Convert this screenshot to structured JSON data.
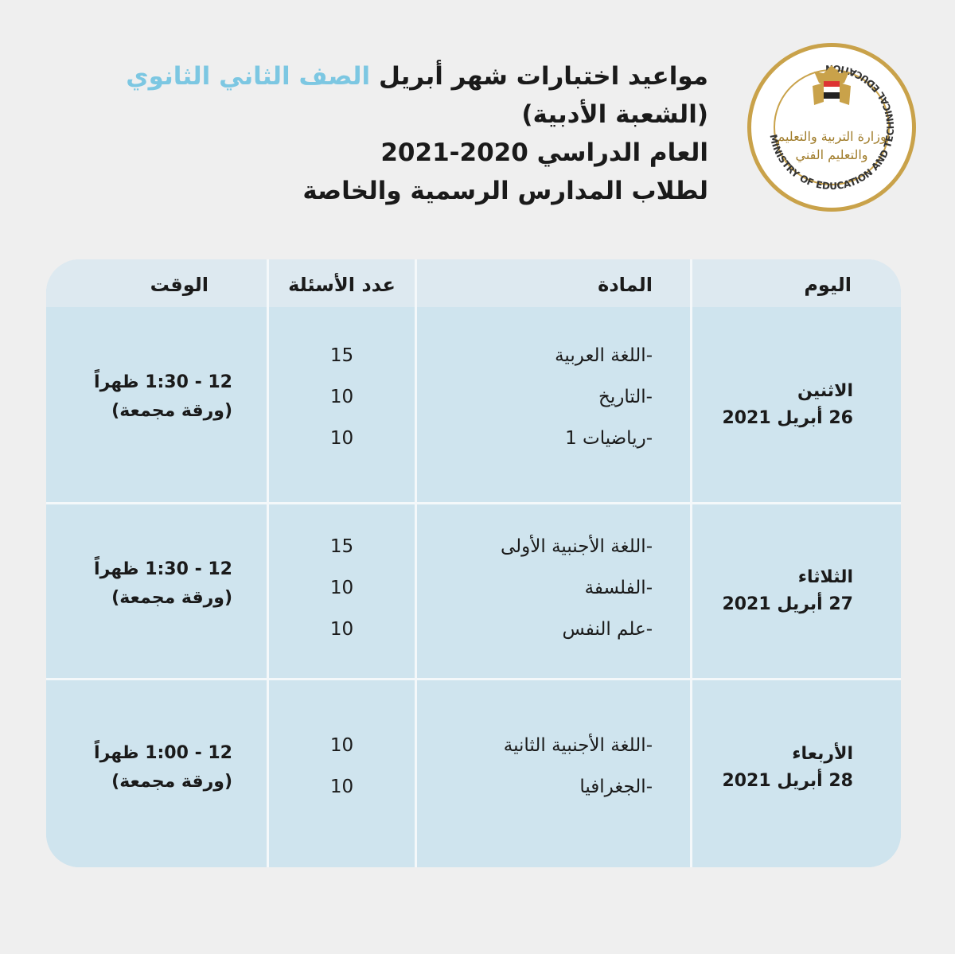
{
  "header": {
    "line1_main": "مواعيد اختبارات شهر أبريل",
    "line1_highlight": "الصف الثاني الثانوي",
    "line2": "(الشعبة الأدبية)",
    "line3": "العام الدراسي 2020-2021",
    "line4": "لطلاب المدارس الرسمية والخاصة",
    "highlight_color": "#7cc7e2"
  },
  "logo": {
    "text_en": "MINISTRY OF EDUCATION AND TECHNICAL EDUCATION",
    "text_ar": "وزارة التربية والتعليم والتعليم الفني",
    "ring_color": "#c9a24a"
  },
  "table": {
    "columns": [
      "اليوم",
      "المادة",
      "عدد الأسئلة",
      "الوقت"
    ],
    "rows": [
      {
        "day": "الاثنين",
        "date": "26 أبريل 2021",
        "subjects": [
          "-اللغة العربية",
          "-التاريخ",
          "-رياضيات 1"
        ],
        "counts": [
          "15",
          "10",
          "10"
        ],
        "time": "12 - 1:30 ظهراً",
        "note": "(ورقة مجمعة)"
      },
      {
        "day": "الثلاثاء",
        "date": "27 أبريل 2021",
        "subjects": [
          "-اللغة الأجنبية الأولى",
          "-الفلسفة",
          "-علم النفس"
        ],
        "counts": [
          "15",
          "10",
          "10"
        ],
        "time": "12 - 1:30 ظهراً",
        "note": "(ورقة مجمعة)"
      },
      {
        "day": "الأربعاء",
        "date": "28 أبريل 2021",
        "subjects": [
          "-اللغة الأجنبية الثانية",
          "-الجغرافيا"
        ],
        "counts": [
          "10",
          "10"
        ],
        "time": "12 - 1:00 ظهراً",
        "note": "(ورقة مجمعة)"
      }
    ]
  }
}
